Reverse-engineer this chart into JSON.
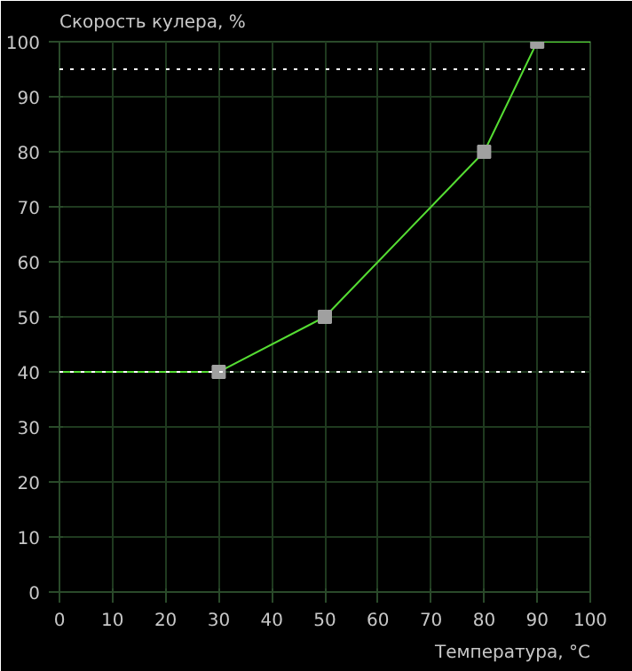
{
  "chart_data": {
    "type": "line",
    "ylabel": "Скорость кулера, %",
    "xlabel": "Температура, °C",
    "xlim": [
      0,
      100
    ],
    "ylim": [
      0,
      100
    ],
    "xticks": [
      0,
      10,
      20,
      30,
      40,
      50,
      60,
      70,
      80,
      90,
      100
    ],
    "yticks": [
      0,
      10,
      20,
      30,
      40,
      50,
      60,
      70,
      80,
      90,
      100
    ],
    "grid": true,
    "series": [
      {
        "color": "#55dd33",
        "x": [
          0,
          30,
          50,
          80,
          90,
          100
        ],
        "values": [
          40,
          40,
          50,
          80,
          100,
          100
        ],
        "marker": "none"
      },
      {
        "type": "scatter",
        "color": "#a0a0a0",
        "x": [
          30,
          50,
          80,
          90
        ],
        "values": [
          40,
          50,
          80,
          100
        ],
        "marker": "square"
      }
    ],
    "ref_lines": [
      {
        "axis": "y",
        "value": 95,
        "color": "#ffffff",
        "line_style": "dotted"
      },
      {
        "axis": "y",
        "value": 40,
        "color": "#ffffff",
        "line_style": "dotted"
      }
    ]
  }
}
